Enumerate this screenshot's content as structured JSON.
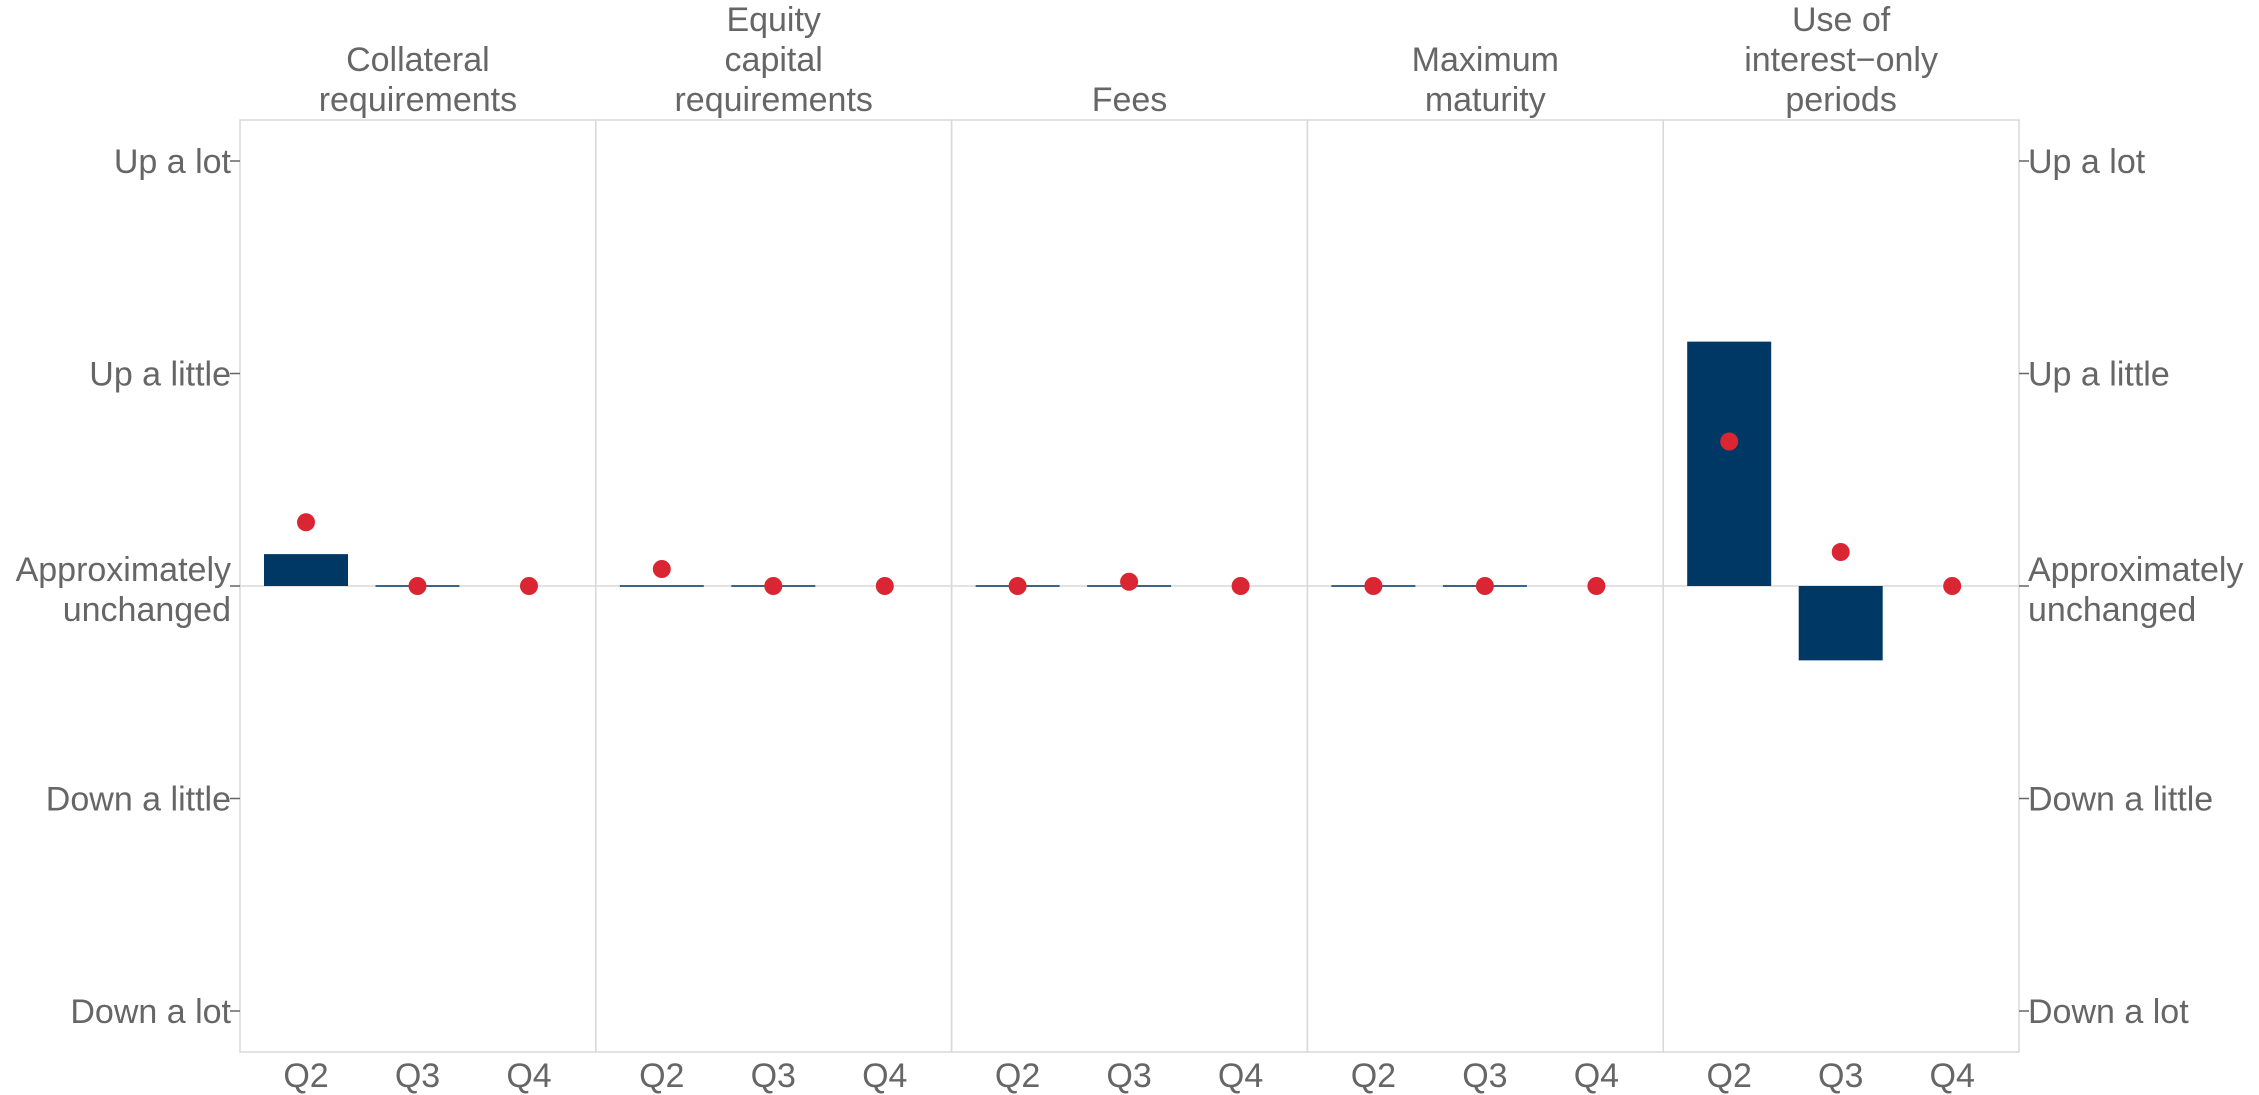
{
  "chart_data": {
    "type": "bar",
    "y_axis": {
      "ticks": [
        {
          "value": 2,
          "label": [
            "Up a lot"
          ]
        },
        {
          "value": 1,
          "label": [
            "Up a little"
          ]
        },
        {
          "value": 0,
          "label": [
            "Approximately",
            "unchanged"
          ]
        },
        {
          "value": -1,
          "label": [
            "Down a little"
          ]
        },
        {
          "value": -2,
          "label": [
            "Down a lot"
          ]
        }
      ],
      "ylim": [
        -2.2,
        2.2
      ]
    },
    "categories": [
      "Q2",
      "Q3",
      "Q4"
    ],
    "panels": [
      {
        "title": [
          "Collateral",
          "requirements"
        ],
        "bars": [
          0.15,
          0.0,
          null
        ],
        "points": [
          0.3,
          0.0,
          0.0
        ]
      },
      {
        "title": [
          "Equity",
          "capital",
          "requirements"
        ],
        "bars": [
          0.0,
          0.0,
          null
        ],
        "points": [
          0.08,
          0.0,
          0.0
        ]
      },
      {
        "title": [
          "Fees"
        ],
        "bars": [
          0.0,
          0.0,
          null
        ],
        "points": [
          0.0,
          0.02,
          0.0
        ]
      },
      {
        "title": [
          "Maximum",
          "maturity"
        ],
        "bars": [
          0.0,
          0.0,
          null
        ],
        "points": [
          0.0,
          0.0,
          0.0
        ]
      },
      {
        "title": [
          "Use of",
          "interest−only",
          "periods"
        ],
        "bars": [
          1.15,
          -0.35,
          null
        ],
        "points": [
          0.68,
          0.16,
          0.0
        ]
      }
    ],
    "colors": {
      "bar": "#003865",
      "point": "#d92632"
    },
    "grid": false
  }
}
